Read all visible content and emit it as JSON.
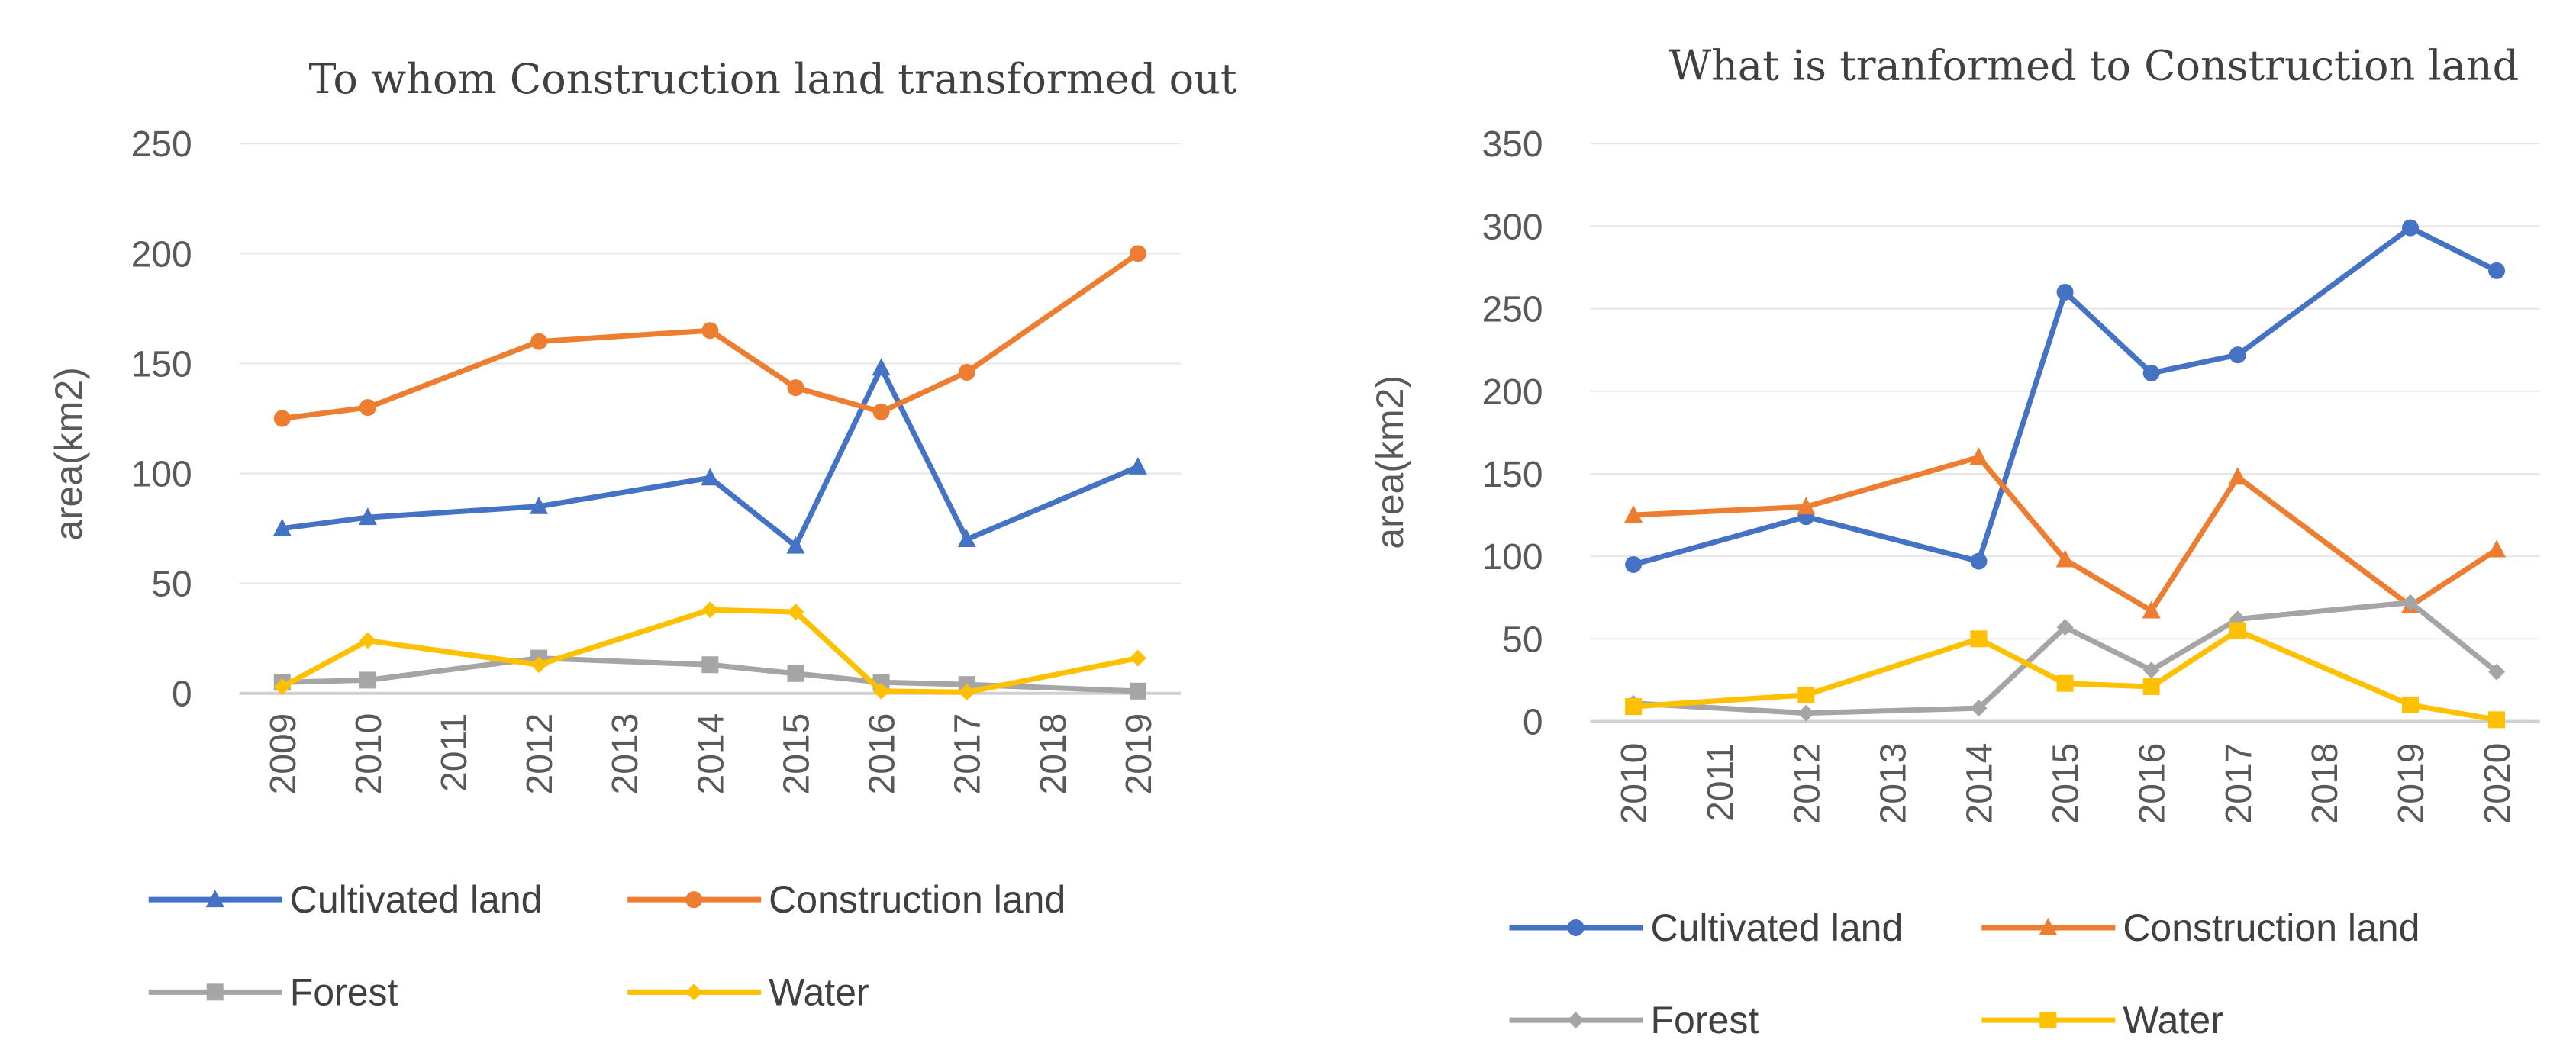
{
  "chart_data": [
    {
      "type": "line",
      "title": "To whom Construction land transformed out",
      "xlabel": "",
      "ylabel": "area(km2)",
      "categories": [
        "2009",
        "2010",
        "2011",
        "2012",
        "2013",
        "2014",
        "2015",
        "2016",
        "2017",
        "2018",
        "2019"
      ],
      "ylim": [
        0,
        250
      ],
      "yticks": [
        0,
        50,
        100,
        150,
        200,
        250
      ],
      "grid": true,
      "legend_position": "bottom",
      "series": [
        {
          "name": "Cultivated land",
          "color": "#4472C4",
          "marker": "triangle",
          "values": [
            75,
            80,
            null,
            85,
            null,
            98,
            67,
            148,
            70,
            null,
            103
          ]
        },
        {
          "name": "Construction land",
          "color": "#ED7D31",
          "marker": "circle",
          "values": [
            125,
            130,
            null,
            160,
            null,
            165,
            139,
            128,
            146,
            null,
            200
          ]
        },
        {
          "name": "Forest",
          "color": "#A5A5A5",
          "marker": "square",
          "values": [
            5,
            6,
            null,
            16,
            null,
            13,
            9,
            5,
            4,
            null,
            1
          ]
        },
        {
          "name": "Water",
          "color": "#FFC000",
          "marker": "diamond",
          "values": [
            3,
            24,
            null,
            13,
            null,
            38,
            37,
            1,
            0.5,
            null,
            16
          ]
        }
      ]
    },
    {
      "type": "line",
      "title": "What is tranformed to Construction land",
      "xlabel": "",
      "ylabel": "area(km2)",
      "categories": [
        "2010",
        "2011",
        "2012",
        "2013",
        "2014",
        "2015",
        "2016",
        "2017",
        "2018",
        "2019",
        "2020"
      ],
      "ylim": [
        0,
        350
      ],
      "yticks": [
        0,
        50,
        100,
        150,
        200,
        250,
        300,
        350
      ],
      "grid": true,
      "legend_position": "bottom",
      "series": [
        {
          "name": "Cultivated land",
          "color": "#4472C4",
          "marker": "circle",
          "values": [
            95,
            null,
            124,
            null,
            97,
            260,
            211,
            222,
            null,
            299,
            273
          ]
        },
        {
          "name": "Construction land",
          "color": "#ED7D31",
          "marker": "triangle",
          "values": [
            125,
            null,
            130,
            null,
            160,
            98,
            67,
            148,
            null,
            70,
            104
          ]
        },
        {
          "name": "Forest",
          "color": "#A5A5A5",
          "marker": "diamond",
          "values": [
            11,
            null,
            5,
            null,
            8,
            57,
            31,
            62,
            null,
            72,
            30
          ]
        },
        {
          "name": "Water",
          "color": "#FFC000",
          "marker": "square",
          "values": [
            9,
            null,
            16,
            null,
            50,
            23,
            21,
            55,
            null,
            10,
            1
          ]
        }
      ]
    }
  ]
}
